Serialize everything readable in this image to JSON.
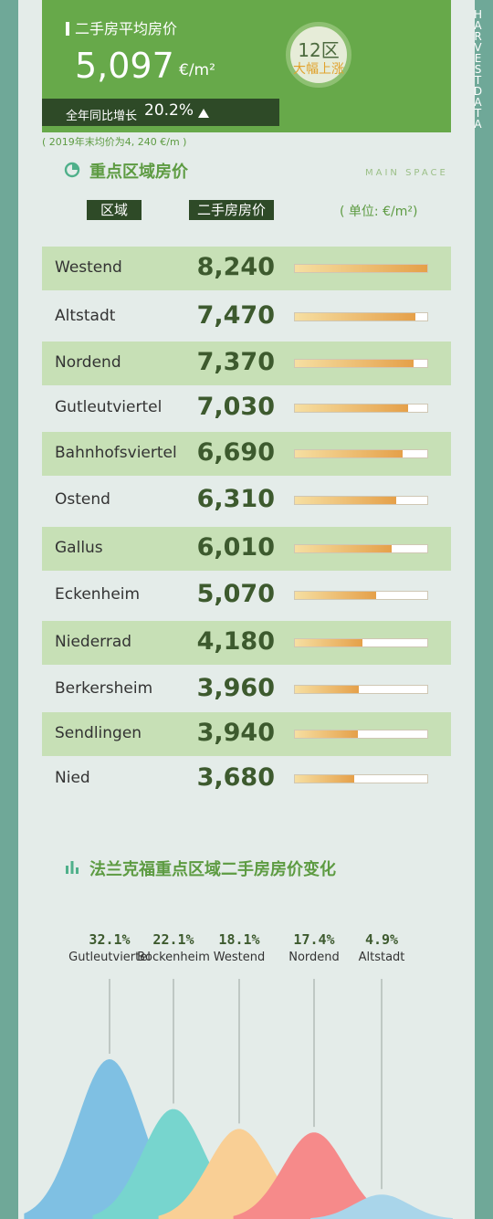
{
  "header": {
    "title": "二手房平均房价",
    "avg_price": "5,097",
    "unit": "€/m²",
    "growth_label": "全年同比增长",
    "growth_value": "20.2%",
    "badge_top": "12区",
    "badge_bottom": "大幅上涨",
    "brand": "HARVESTDATA"
  },
  "note": "( 2019年末均价为4, 240 €/m )",
  "section1": {
    "title": "重点区域房价",
    "subtitle": "MAIN SPACE",
    "col_district": "区域",
    "col_price": "二手房房价",
    "unit_note": "( 单位: €/m²)"
  },
  "section2": {
    "title": "法兰克福重点区域二手房房价变化"
  },
  "colors": {
    "header_green": "#67a94a",
    "dark_green": "#2e4a27",
    "row_shade": "#c7e0b6",
    "bar_gradient": [
      "#f6dfa2",
      "#e5a049"
    ],
    "peaks": [
      "#7fc0e3",
      "#77d5ce",
      "#f9cf95",
      "#f68a8a",
      "#a9d5ea"
    ]
  },
  "chart_data": [
    {
      "type": "bar",
      "categories": [
        "Westend",
        "Altstadt",
        "Nordend",
        "Gutleutviertel",
        "Bahnhofsviertel",
        "Ostend",
        "Gallus",
        "Eckenheim",
        "Niederrad",
        "Berkersheim",
        "Sendlingen",
        "Nied"
      ],
      "values": [
        8240,
        7470,
        7370,
        7030,
        6690,
        6310,
        6010,
        5070,
        4180,
        3960,
        3940,
        3680
      ],
      "value_labels": [
        "8,240",
        "7,470",
        "7,370",
        "7,030",
        "6,690",
        "6,310",
        "6,010",
        "5,070",
        "4,180",
        "3,960",
        "3,940",
        "3,680"
      ],
      "orientation": "horizontal",
      "xlim": [
        0,
        8240
      ]
    },
    {
      "type": "area",
      "categories": [
        "Gutleutviertel",
        "Bockenheim",
        "Westend",
        "Nordend",
        "Altstadt"
      ],
      "values": [
        32.1,
        22.1,
        18.1,
        17.4,
        4.9
      ],
      "value_labels": [
        "32.1%",
        "22.1%",
        "18.1%",
        "17.4%",
        "4.9%"
      ]
    }
  ]
}
